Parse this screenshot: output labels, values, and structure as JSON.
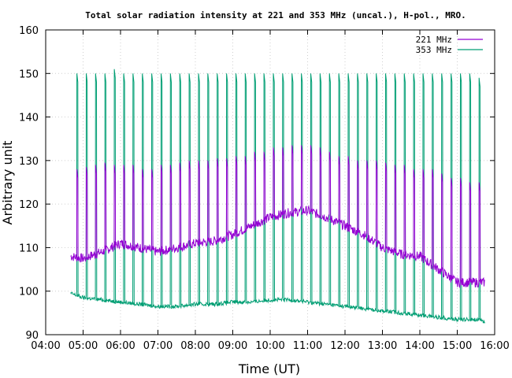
{
  "chart_data": {
    "type": "line",
    "title": "Total solar radiation intensity at 221 and 353 MHz (uncal.), H-pol., MRO.",
    "xlabel": "Time (UT)",
    "ylabel": "Arbitrary unit",
    "xlim": [
      "04:00",
      "16:00"
    ],
    "ylim": [
      90,
      160
    ],
    "x_ticks": [
      "04:00",
      "05:00",
      "06:00",
      "07:00",
      "08:00",
      "09:00",
      "10:00",
      "11:00",
      "12:00",
      "13:00",
      "14:00",
      "15:00",
      "16:00"
    ],
    "y_ticks": [
      90,
      100,
      110,
      120,
      130,
      140,
      150,
      160
    ],
    "grid": true,
    "legend_position": "top-right",
    "spike_times": [
      "04:50",
      "05:05",
      "05:20",
      "05:35",
      "05:50",
      "06:05",
      "06:20",
      "06:35",
      "06:50",
      "07:05",
      "07:20",
      "07:35",
      "07:50",
      "08:05",
      "08:20",
      "08:35",
      "08:50",
      "09:05",
      "09:20",
      "09:35",
      "09:50",
      "10:05",
      "10:20",
      "10:35",
      "10:50",
      "11:05",
      "11:20",
      "11:35",
      "11:50",
      "12:05",
      "12:20",
      "12:35",
      "12:50",
      "13:05",
      "13:20",
      "13:35",
      "13:50",
      "14:05",
      "14:20",
      "14:35",
      "14:50",
      "15:05",
      "15:20",
      "15:35"
    ],
    "series": [
      {
        "name": "221 MHz",
        "color": "#9400d3",
        "x": [
          "04:40",
          "05:00",
          "05:30",
          "06:00",
          "06:30",
          "07:00",
          "07:30",
          "08:00",
          "08:30",
          "09:00",
          "09:30",
          "10:00",
          "10:30",
          "11:00",
          "11:30",
          "12:00",
          "12:30",
          "13:00",
          "13:30",
          "14:00",
          "14:30",
          "15:00",
          "15:30",
          "15:45"
        ],
        "values": [
          108,
          107.5,
          109,
          111,
          110,
          109,
          110,
          111,
          111.5,
          113,
          115,
          117,
          118,
          118.5,
          117,
          115,
          113,
          110,
          108.5,
          108,
          105,
          102,
          102,
          102
        ],
        "spike_values": [
          128,
          128.5,
          129,
          129.5,
          129,
          129,
          129,
          128,
          128,
          129,
          129,
          129.5,
          130,
          130,
          130,
          130.5,
          130.5,
          131,
          131,
          132,
          132,
          133,
          133,
          133.5,
          133.5,
          133.5,
          133,
          132,
          131,
          131,
          130,
          130,
          130,
          129.5,
          129,
          129,
          128,
          128,
          128,
          127,
          126,
          126,
          125,
          125
        ]
      },
      {
        "name": "353 MHz",
        "color": "#009e73",
        "x": [
          "04:40",
          "05:00",
          "05:30",
          "06:00",
          "06:30",
          "07:00",
          "07:30",
          "08:00",
          "08:30",
          "09:00",
          "09:30",
          "10:00",
          "10:30",
          "11:00",
          "11:30",
          "12:00",
          "12:30",
          "13:00",
          "13:30",
          "14:00",
          "14:30",
          "15:00",
          "15:30",
          "15:45"
        ],
        "values": [
          99.5,
          98.5,
          98,
          97.5,
          97,
          96.5,
          96.5,
          97,
          97,
          97.5,
          97.5,
          98,
          98,
          97.5,
          97,
          96.5,
          96,
          95.5,
          95,
          94.5,
          94,
          93.5,
          93.5,
          93
        ],
        "spike_values": [
          150,
          150,
          150,
          150,
          151,
          150,
          150,
          150,
          150,
          150,
          150,
          150,
          150,
          150,
          150,
          150,
          150,
          150,
          150,
          150,
          150,
          150,
          150,
          150,
          150,
          150,
          150,
          150,
          150,
          150,
          150,
          150,
          150,
          150,
          150,
          150,
          150,
          150,
          150,
          150,
          150,
          150,
          150,
          149
        ]
      }
    ]
  }
}
